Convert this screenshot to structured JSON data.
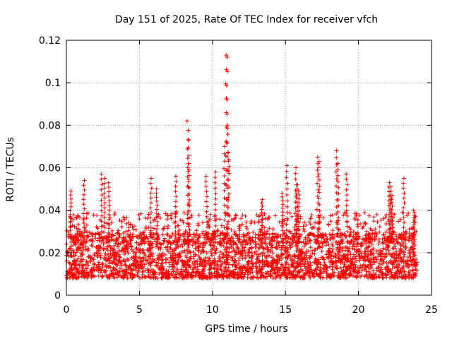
{
  "chart_data": {
    "type": "scatter",
    "title": "Day 151 of 2025, Rate Of TEC Index for receiver vfch",
    "xlabel": "GPS time / hours",
    "ylabel": "ROTI / TECUs",
    "xlim": [
      0,
      25
    ],
    "ylim": [
      0,
      0.12
    ],
    "grid": true,
    "marker": "+",
    "x_ticks": [
      0,
      5,
      10,
      15,
      20,
      25
    ],
    "x_tick_labels": [
      "0",
      "5",
      "10",
      "15",
      "20",
      "25"
    ],
    "y_ticks": [
      0,
      0.02,
      0.04,
      0.06,
      0.08,
      0.1,
      0.12
    ],
    "y_tick_labels": [
      "0",
      "0.02",
      "0.04",
      "0.06",
      "0.08",
      "0.1",
      "0.12"
    ],
    "colors": {
      "points": "#ff0000",
      "grid": "#a0a0a0",
      "axes": "#000000"
    },
    "data_coverage_hours": [
      0,
      24
    ],
    "baseline_band": [
      0.005,
      0.03
    ],
    "series": [
      {
        "name": "ROTI",
        "description_values": "dense point cloud from 0 to 24 h, mostly 0.005-0.03 TECUs with spikes",
        "x": [
          0.3,
          1.2,
          2.4,
          2.6,
          2.9,
          5.8,
          6.2,
          7.5,
          8.3,
          8.35,
          8.4,
          9.6,
          10.2,
          10.8,
          10.95,
          11.0,
          11.05,
          11.1,
          13.4,
          14.8,
          15.1,
          15.7,
          15.8,
          15.9,
          17.2,
          17.3,
          18.5,
          18.6,
          19.2,
          22.1,
          22.2,
          22.3,
          23.1,
          23.8
        ],
        "y": [
          0.049,
          0.054,
          0.057,
          0.055,
          0.053,
          0.055,
          0.05,
          0.056,
          0.082,
          0.073,
          0.062,
          0.056,
          0.058,
          0.07,
          0.113,
          0.112,
          0.08,
          0.067,
          0.045,
          0.048,
          0.061,
          0.06,
          0.052,
          0.049,
          0.065,
          0.063,
          0.068,
          0.062,
          0.057,
          0.053,
          0.051,
          0.047,
          0.055,
          0.04
        ]
      }
    ]
  }
}
